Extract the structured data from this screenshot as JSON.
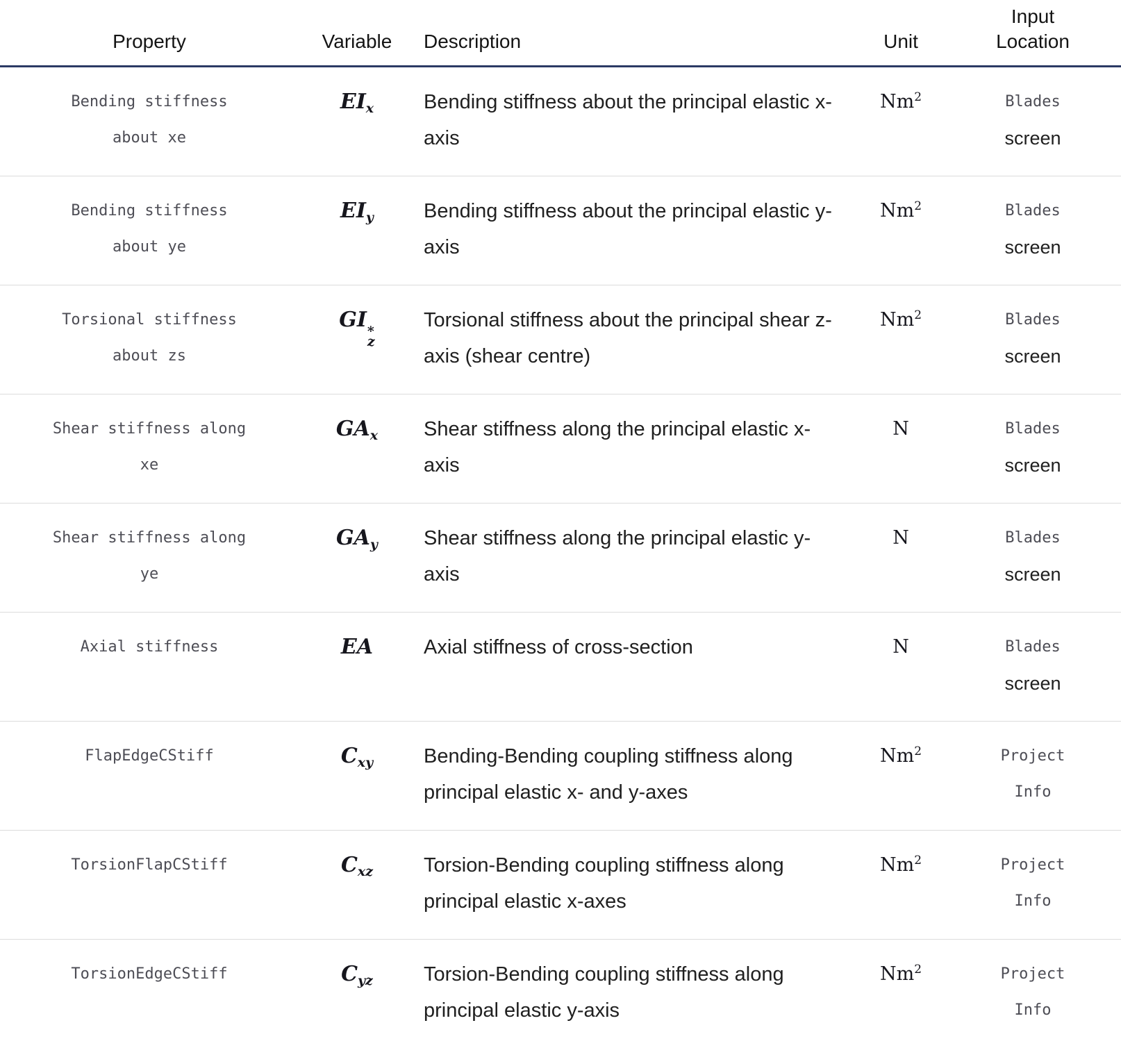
{
  "header": {
    "property": "Property",
    "variable": "Variable",
    "description": "Description",
    "unit": "Unit",
    "input_location": "Input Location"
  },
  "rows": [
    {
      "property": "Bending stiffness about xe",
      "variable": {
        "base": "EI",
        "sub": "x"
      },
      "description": "Bending stiffness about the principal elastic x-axis",
      "unit": {
        "base": "Nm",
        "sup": "2"
      },
      "location": [
        {
          "text": "Blades",
          "style": "code"
        },
        {
          "text": "screen",
          "style": "plain"
        }
      ]
    },
    {
      "property": "Bending stiffness about ye",
      "variable": {
        "base": "EI",
        "sub": "y"
      },
      "description": "Bending stiffness about the principal elastic y-axis",
      "unit": {
        "base": "Nm",
        "sup": "2"
      },
      "location": [
        {
          "text": "Blades",
          "style": "code"
        },
        {
          "text": "screen",
          "style": "plain"
        }
      ]
    },
    {
      "property": "Torsional stiffness about zs",
      "variable": {
        "base": "GI",
        "sup": "*",
        "sub": "z"
      },
      "description": "Torsional stiffness about the principal shear z-axis (shear centre)",
      "unit": {
        "base": "Nm",
        "sup": "2"
      },
      "location": [
        {
          "text": "Blades",
          "style": "code"
        },
        {
          "text": "screen",
          "style": "plain"
        }
      ]
    },
    {
      "property": "Shear stiffness along xe",
      "variable": {
        "base": "GA",
        "sub": "x"
      },
      "description": "Shear stiffness along the principal elastic x-axis",
      "unit": {
        "base": "N"
      },
      "location": [
        {
          "text": "Blades",
          "style": "code"
        },
        {
          "text": "screen",
          "style": "plain"
        }
      ]
    },
    {
      "property": "Shear stiffness along ye",
      "variable": {
        "base": "GA",
        "sub": "y"
      },
      "description": "Shear stiffness along the principal elastic y-axis",
      "unit": {
        "base": "N"
      },
      "location": [
        {
          "text": "Blades",
          "style": "code"
        },
        {
          "text": "screen",
          "style": "plain"
        }
      ]
    },
    {
      "property": "Axial stiffness",
      "variable": {
        "base": "EA"
      },
      "description": "Axial stiffness of cross-section",
      "unit": {
        "base": "N"
      },
      "location": [
        {
          "text": "Blades",
          "style": "code"
        },
        {
          "text": "screen",
          "style": "plain"
        }
      ]
    },
    {
      "property": "FlapEdgeCStiff",
      "variable": {
        "base": "C",
        "sub": "xy"
      },
      "description": "Bending-Bending coupling stiffness along principal elastic x- and y-axes",
      "unit": {
        "base": "Nm",
        "sup": "2"
      },
      "location": [
        {
          "text": "Project",
          "style": "code"
        },
        {
          "text": "Info",
          "style": "code"
        }
      ]
    },
    {
      "property": "TorsionFlapCStiff",
      "variable": {
        "base": "C",
        "sub": "xz"
      },
      "description": "Torsion-Bending coupling stiffness along principal elastic x-axes",
      "unit": {
        "base": "Nm",
        "sup": "2"
      },
      "location": [
        {
          "text": "Project",
          "style": "code"
        },
        {
          "text": "Info",
          "style": "code"
        }
      ]
    },
    {
      "property": "TorsionEdgeCStiff",
      "variable": {
        "base": "C",
        "sub": "yz"
      },
      "description": "Torsion-Bending coupling stiffness along principal elastic y-axis",
      "unit": {
        "base": "Nm",
        "sup": "2"
      },
      "location": [
        {
          "text": "Project",
          "style": "code"
        },
        {
          "text": "Info",
          "style": "code"
        }
      ]
    }
  ]
}
